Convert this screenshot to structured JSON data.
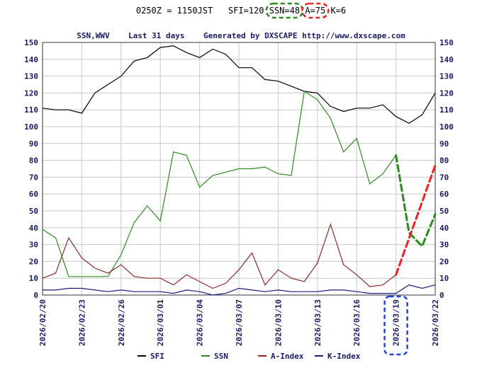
{
  "header": {
    "time": "0250Z = 1150JST",
    "sfi": "SFI=120",
    "ssn": "SSN=48",
    "a": "A=75",
    "k": "K=6"
  },
  "chart_data": {
    "type": "line",
    "title": "SSN,WWV    Last 31 days    Generated by DXSCAPE http://www.dxscape.com",
    "ylim": [
      0,
      150
    ],
    "yticks": [
      0,
      10,
      20,
      30,
      40,
      50,
      60,
      70,
      80,
      90,
      100,
      110,
      120,
      130,
      140,
      150
    ],
    "x_labels": [
      "2026/02/20",
      "2026/02/23",
      "2026/02/26",
      "2026/03/01",
      "2026/03/04",
      "2026/03/07",
      "2026/03/10",
      "2026/03/13",
      "2026/03/16",
      "2026/03/19",
      "2026/03/22"
    ],
    "x_label_days": [
      0,
      3,
      6,
      9,
      12,
      15,
      18,
      21,
      24,
      27,
      30
    ],
    "grid": true,
    "legend_position": "bottom",
    "series": [
      {
        "name": "SFI",
        "color": "#000000",
        "values": [
          111,
          110,
          110,
          108,
          120,
          125,
          130,
          139,
          141,
          147,
          148,
          144,
          141,
          146,
          143,
          135,
          135,
          128,
          127,
          124,
          121,
          120,
          112,
          109,
          111,
          111,
          113,
          106,
          102,
          107,
          120
        ]
      },
      {
        "name": "SSN",
        "color": "#2e8b22",
        "values": [
          39,
          34,
          11,
          11,
          11,
          11,
          24,
          43,
          53,
          44,
          85,
          83,
          64,
          71,
          73,
          75,
          75,
          76,
          72,
          71,
          121,
          116,
          105,
          85,
          93,
          66,
          72,
          83
        ]
      },
      {
        "name": "A-Index",
        "color": "#8b2a2a",
        "values": [
          10,
          13,
          34,
          22,
          16,
          13,
          18,
          11,
          10,
          10,
          6,
          12,
          8,
          4,
          7,
          15,
          25,
          6,
          15,
          10,
          8,
          19,
          42,
          18,
          12,
          5,
          6,
          12
        ]
      },
      {
        "name": "K-Index",
        "color": "#1a1a7a",
        "values": [
          3,
          3,
          4,
          4,
          3,
          2,
          3,
          2,
          2,
          2,
          1,
          3,
          2,
          0,
          1,
          4,
          3,
          2,
          3,
          2,
          2,
          2,
          3,
          3,
          2,
          1,
          1,
          1,
          6,
          4,
          6
        ]
      }
    ],
    "annotations": [
      {
        "kind": "dashed-line",
        "color": "#2a8a1e",
        "x": [
          27,
          28,
          29,
          30
        ],
        "y": [
          83,
          37,
          29,
          48
        ]
      },
      {
        "kind": "dashed-line",
        "color": "#ee2222",
        "x": [
          27,
          30
        ],
        "y": [
          12,
          77
        ]
      },
      {
        "kind": "dashed-ellipse",
        "color": "#2a8a1e",
        "target": "header.ssn"
      },
      {
        "kind": "dashed-ellipse",
        "color": "#ee2222",
        "target": "header.a"
      },
      {
        "kind": "dashed-box",
        "color": "#1f44dd",
        "target_x_label": "2026/03/19"
      }
    ]
  }
}
